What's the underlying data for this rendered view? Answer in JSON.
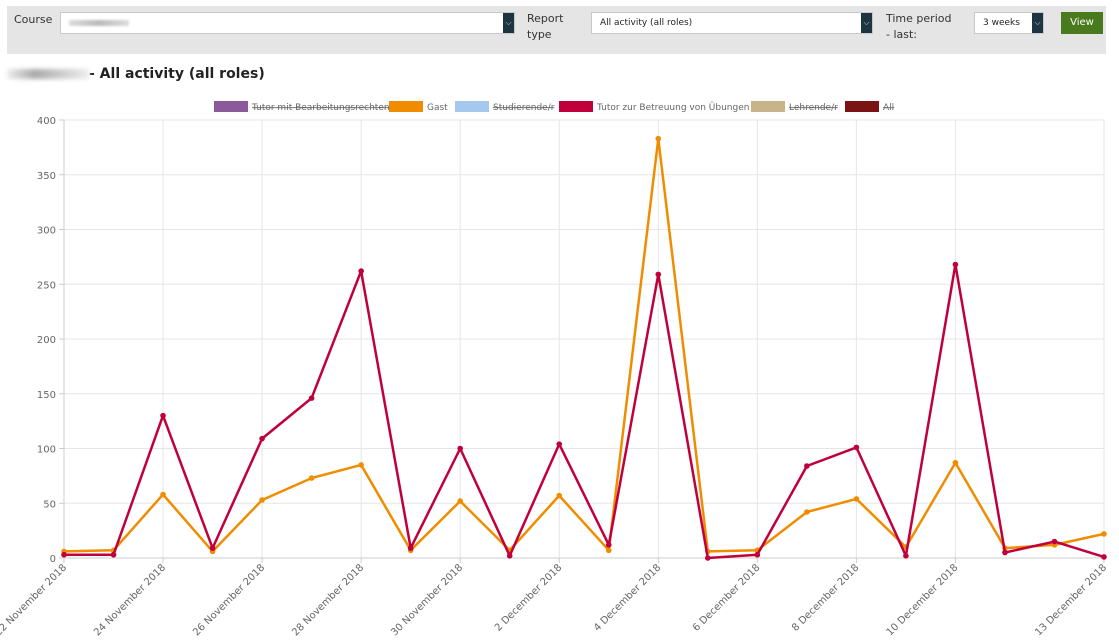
{
  "filters": {
    "course_label": "Course",
    "course_value": "",
    "report_type_label": "Report type",
    "report_type_value": "All activity (all roles)",
    "time_period_label": "Time period - last:",
    "time_period_value": "3 weeks",
    "view_button": "View"
  },
  "report": {
    "title_suffix": "- All activity (all roles)"
  },
  "colors": {
    "accent_button": "#4a7a1e",
    "select_arrow": "#1d3540"
  },
  "chart_data": {
    "type": "line",
    "ylim": [
      0,
      400
    ],
    "yticks": [
      0,
      50,
      100,
      150,
      200,
      250,
      300,
      350,
      400
    ],
    "grid": true,
    "legend_position": "top",
    "x": [
      "22 November 2018",
      "23 November 2018",
      "24 November 2018",
      "25 November 2018",
      "26 November 2018",
      "27 November 2018",
      "28 November 2018",
      "29 November 2018",
      "30 November 2018",
      "1 December 2018",
      "2 December 2018",
      "3 December 2018",
      "4 December 2018",
      "5 December 2018",
      "6 December 2018",
      "7 December 2018",
      "8 December 2018",
      "9 December 2018",
      "10 December 2018",
      "11 December 2018",
      "12 December 2018",
      "13 December 2018"
    ],
    "xtick_labels": [
      "22 November 2018",
      "24 November 2018",
      "26 November 2018",
      "28 November 2018",
      "30 November 2018",
      "2 December 2018",
      "4 December 2018",
      "6 December 2018",
      "8 December 2018",
      "10 December 2018",
      "13 December 2018"
    ],
    "legend": [
      {
        "name": "Tutor mit Bearbeitungsrechten",
        "color": "#8a5a9a",
        "hidden": true
      },
      {
        "name": "Gast",
        "color": "#f08c00",
        "hidden": false
      },
      {
        "name": "Studierende/r",
        "color": "#a5c9ee",
        "hidden": true
      },
      {
        "name": "Tutor zur Betreuung von Übungen",
        "color": "#c0003c",
        "hidden": false
      },
      {
        "name": "Lehrende/r",
        "color": "#c8b48a",
        "hidden": true
      },
      {
        "name": "All",
        "color": "#7a1414",
        "hidden": true
      }
    ],
    "series": [
      {
        "name": "Gast",
        "color": "#f08c00",
        "values": [
          6,
          7,
          58,
          6,
          53,
          73,
          85,
          7,
          52,
          7,
          57,
          7,
          383,
          6,
          7,
          42,
          54,
          10,
          87,
          9,
          12,
          22
        ]
      },
      {
        "name": "Tutor zur Betreuung von Übungen",
        "color": "#c0003c",
        "values": [
          3,
          3,
          130,
          9,
          109,
          146,
          262,
          9,
          100,
          2,
          104,
          12,
          259,
          0,
          3,
          84,
          101,
          2,
          268,
          5,
          15,
          1
        ]
      }
    ]
  }
}
